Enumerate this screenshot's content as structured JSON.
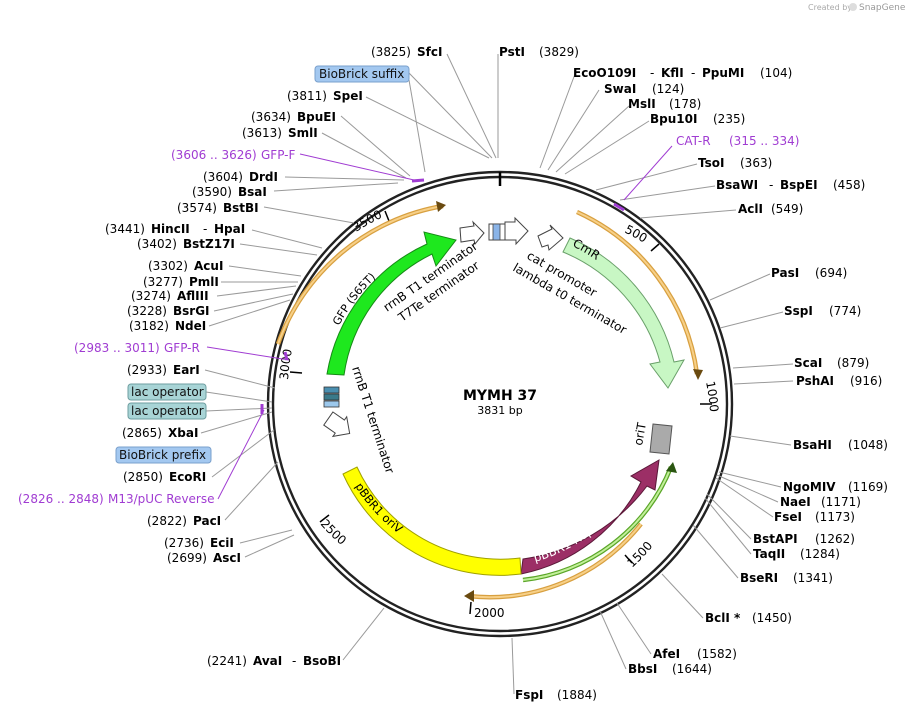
{
  "credit": {
    "prefix": "Created by",
    "brand": "SnapGene"
  },
  "plasmid": {
    "name": "MYMH 37",
    "length": "3831 bp"
  },
  "ticks": [
    "500",
    "1000",
    "1500",
    "2000",
    "2500",
    "3000",
    "3500"
  ],
  "sites": {
    "sfci": {
      "pos": "(3825)",
      "name": "SfcI"
    },
    "psti": {
      "name": "PstI",
      "pos": "(3829)"
    },
    "eco": {
      "name1": "EcoO109I",
      "sep1": "-",
      "name2": "KflI",
      "sep2": "-",
      "name3": "PpuMI",
      "pos": "(104)"
    },
    "swai": {
      "name": "SwaI",
      "pos": "(124)"
    },
    "msli": {
      "name": "MslI",
      "pos": "(178)"
    },
    "bpu10i": {
      "name": "Bpu10I",
      "pos": "(235)"
    },
    "tsoi": {
      "name": "TsoI",
      "pos": "(363)"
    },
    "bsawi": {
      "name1": "BsaWI",
      "sep": "-",
      "name2": "BspEI",
      "pos": "(458)"
    },
    "acli": {
      "name": "AclI",
      "pos": "(549)"
    },
    "pasi": {
      "name": "PasI",
      "pos": "(694)"
    },
    "sspi": {
      "name": "SspI",
      "pos": "(774)"
    },
    "scai": {
      "name": "ScaI",
      "pos": "(879)"
    },
    "pshai": {
      "name": "PshAI",
      "pos": "(916)"
    },
    "bsahi": {
      "name": "BsaHI",
      "pos": "(1048)"
    },
    "ngomiv": {
      "name": "NgoMIV",
      "pos": "(1169)"
    },
    "naei": {
      "name": "NaeI",
      "pos": "(1171)"
    },
    "fsei": {
      "name": "FseI",
      "pos": "(1173)"
    },
    "bstapi": {
      "name": "BstAPI",
      "pos": "(1262)"
    },
    "taqii": {
      "name": "TaqII",
      "pos": "(1284)"
    },
    "bseri": {
      "name": "BseRI",
      "pos": "(1341)"
    },
    "bcli": {
      "name": "BclI *",
      "pos": "(1450)"
    },
    "afei": {
      "name": "AfeI",
      "pos": "(1582)"
    },
    "bbsi": {
      "name": "BbsI",
      "pos": "(1644)"
    },
    "fspi": {
      "name": "FspI",
      "pos": "(1884)"
    },
    "avai": {
      "pos": "(2241)",
      "name1": "AvaI",
      "sep": "-",
      "name2": "BsoBI"
    },
    "asci": {
      "pos": "(2699)",
      "name": "AscI"
    },
    "ecii": {
      "pos": "(2736)",
      "name": "EciI"
    },
    "paci": {
      "pos": "(2822)",
      "name": "PacI"
    },
    "ecori": {
      "pos": "(2850)",
      "name": "EcoRI"
    },
    "xbai": {
      "pos": "(2865)",
      "name": "XbaI"
    },
    "eari": {
      "pos": "(2933)",
      "name": "EarI"
    },
    "ndei": {
      "pos": "(3182)",
      "name": "NdeI"
    },
    "bsrgi": {
      "pos": "(3228)",
      "name": "BsrGI"
    },
    "afliii": {
      "pos": "(3274)",
      "name": "AflIII"
    },
    "pmli": {
      "pos": "(3277)",
      "name": "PmlI"
    },
    "acui": {
      "pos": "(3302)",
      "name": "AcuI"
    },
    "bstz17i": {
      "pos": "(3402)",
      "name": "BstZ17I"
    },
    "hincii": {
      "pos": "(3441)",
      "name1": "HincII",
      "sep": "-",
      "name2": "HpaI"
    },
    "bstbi": {
      "pos": "(3574)",
      "name": "BstBI"
    },
    "bsai": {
      "pos": "(3590)",
      "name": "BsaI"
    },
    "drdi": {
      "pos": "(3604)",
      "name": "DrdI"
    },
    "smli": {
      "pos": "(3613)",
      "name": "SmlI"
    },
    "bpuei": {
      "pos": "(3634)",
      "name": "BpuEI"
    },
    "spei": {
      "pos": "(3811)",
      "name": "SpeI"
    }
  },
  "primers": {
    "cat_r": {
      "name": "CAT-R",
      "range": "(315 .. 334)"
    },
    "gfp_f": {
      "range": "(3606 .. 3626)",
      "name": "GFP-F"
    },
    "gfp_r": {
      "range": "(2983 .. 3011)",
      "name": "GFP-R"
    },
    "m13": {
      "range": "(2826 .. 2848)",
      "name": "M13/pUC Reverse"
    }
  },
  "boxed": {
    "biobrick_suffix": "BioBrick suffix",
    "lac_operator_1": "lac operator",
    "lac_operator_2": "lac operator",
    "biobrick_prefix": "BioBrick prefix"
  },
  "features": {
    "gfp": "GFP (S65T)",
    "cmr": "CmR",
    "pbbr1_rep": "pBBR1 Rep",
    "pbbr1_oriv": "pBBR1 oriV",
    "orit": "oriT",
    "rrnb_t1_top": "rrnB T1 terminator",
    "t7te": "T7Te terminator",
    "cat_promoter": "cat promoter",
    "lambda_t0": "lambda t0 terminator",
    "rrnb_t1_left": "rrnB T1 terminator"
  },
  "colors": {
    "gfp": "#1ee81e",
    "cmr": "#c8f7c4",
    "rep": "#9c2f66",
    "oriv": "#ffff00",
    "orit": "#aaaaaa",
    "orange": "#f0a830",
    "primer": "#a03cd2",
    "biobrick": "#a3c8f0",
    "lacop": "#a8d4d6"
  }
}
